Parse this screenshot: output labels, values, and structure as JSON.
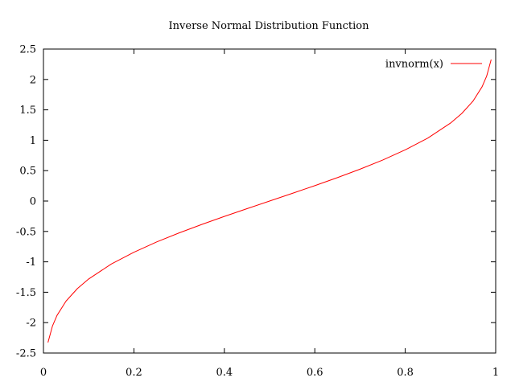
{
  "chart_data": {
    "type": "line",
    "title": "Inverse Normal Distribution Function",
    "xlabel": "",
    "ylabel": "",
    "xlim": [
      0,
      1
    ],
    "ylim": [
      -2.5,
      2.5
    ],
    "x_ticks": [
      0,
      0.2,
      0.4,
      0.6,
      0.8,
      1
    ],
    "x_tick_labels": [
      "0",
      "0.2",
      "0.4",
      "0.6",
      "0.8",
      "1"
    ],
    "y_ticks": [
      -2.5,
      -2,
      -1.5,
      -1,
      -0.5,
      0,
      0.5,
      1,
      1.5,
      2,
      2.5
    ],
    "y_tick_labels": [
      "-2.5",
      "-2",
      "-1.5",
      "-1",
      "-0.5",
      "0",
      "0.5",
      "1",
      "1.5",
      "2",
      "2.5"
    ],
    "grid": false,
    "legend_position": "top-right",
    "series": [
      {
        "name": "invnorm(x)",
        "color": "#ff0000",
        "x": [
          0.01,
          0.02,
          0.03,
          0.05,
          0.075,
          0.1,
          0.15,
          0.2,
          0.25,
          0.3,
          0.35,
          0.4,
          0.45,
          0.5,
          0.55,
          0.6,
          0.65,
          0.7,
          0.75,
          0.8,
          0.85,
          0.9,
          0.925,
          0.95,
          0.97,
          0.98,
          0.99
        ],
        "y": [
          -2.326,
          -2.054,
          -1.881,
          -1.645,
          -1.44,
          -1.282,
          -1.036,
          -0.842,
          -0.674,
          -0.524,
          -0.385,
          -0.253,
          -0.126,
          0,
          0.126,
          0.253,
          0.385,
          0.524,
          0.674,
          0.842,
          1.036,
          1.282,
          1.44,
          1.645,
          1.881,
          2.054,
          2.326
        ]
      }
    ]
  }
}
